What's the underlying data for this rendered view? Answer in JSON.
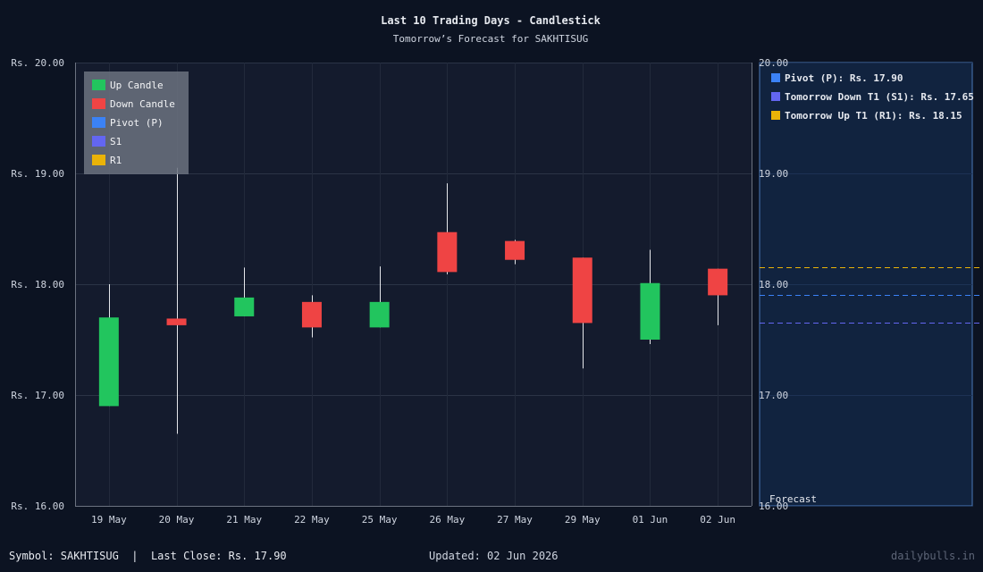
{
  "chart_data": {
    "type": "candlestick",
    "title": "Last 10 Trading Days - Candlestick",
    "subtitle": "Tomorrow’s Forecast for SAKHTISUG",
    "y_tick_labels": [
      "Rs. 16.00",
      "Rs. 17.00",
      "Rs. 18.00",
      "Rs. 19.00",
      "Rs. 20.00"
    ],
    "forecast_tick_labels": [
      "16.00",
      "17.00",
      "18.00",
      "19.00",
      "20.00"
    ],
    "ylim": [
      16.0,
      20.0
    ],
    "grid": true,
    "categories": [
      "19 May",
      "20 May",
      "21 May",
      "22 May",
      "25 May",
      "26 May",
      "27 May",
      "29 May",
      "01 Jun",
      "02 Jun"
    ],
    "candles": [
      {
        "open": 16.9,
        "high": 18.0,
        "low": 16.9,
        "close": 17.7
      },
      {
        "open": 17.69,
        "high": 19.05,
        "low": 16.65,
        "close": 17.63
      },
      {
        "open": 17.71,
        "high": 18.15,
        "low": 17.71,
        "close": 17.88
      },
      {
        "open": 17.84,
        "high": 17.9,
        "low": 17.52,
        "close": 17.61
      },
      {
        "open": 17.61,
        "high": 18.16,
        "low": 17.61,
        "close": 17.84
      },
      {
        "open": 18.47,
        "high": 18.91,
        "low": 18.09,
        "close": 18.11
      },
      {
        "open": 18.39,
        "high": 18.4,
        "low": 18.18,
        "close": 18.22
      },
      {
        "open": 18.24,
        "high": 18.24,
        "low": 17.24,
        "close": 17.65
      },
      {
        "open": 17.5,
        "high": 18.31,
        "low": 17.46,
        "close": 18.01
      },
      {
        "open": 18.14,
        "high": 18.14,
        "low": 17.63,
        "close": 17.9
      }
    ],
    "legend": {
      "placement": "top-left",
      "items": [
        {
          "label": "Up Candle",
          "color": "#22c55e"
        },
        {
          "label": "Down Candle",
          "color": "#ef4444"
        },
        {
          "label": "Pivot (P)",
          "color": "#3b82f6"
        },
        {
          "label": "S1",
          "color": "#6366f1"
        },
        {
          "label": "R1",
          "color": "#eab308"
        }
      ]
    },
    "forecast": {
      "panel_label": "Forecast",
      "levels": [
        {
          "label": "Pivot (P): Rs. 17.90",
          "value": 17.9,
          "color": "#3b82f6"
        },
        {
          "label": "Tomorrow Down T1 (S1): Rs. 17.65",
          "value": 17.65,
          "color": "#6366f1"
        },
        {
          "label": "Tomorrow Up T1 (R1): Rs. 18.15",
          "value": 18.15,
          "color": "#eab308"
        }
      ]
    }
  },
  "footer": {
    "symbol_text": "Symbol: SAKHTISUG  |  Last Close: Rs. 17.90",
    "updated_text": "Updated: 02 Jun 2026",
    "watermark": "dailybulls.in"
  }
}
